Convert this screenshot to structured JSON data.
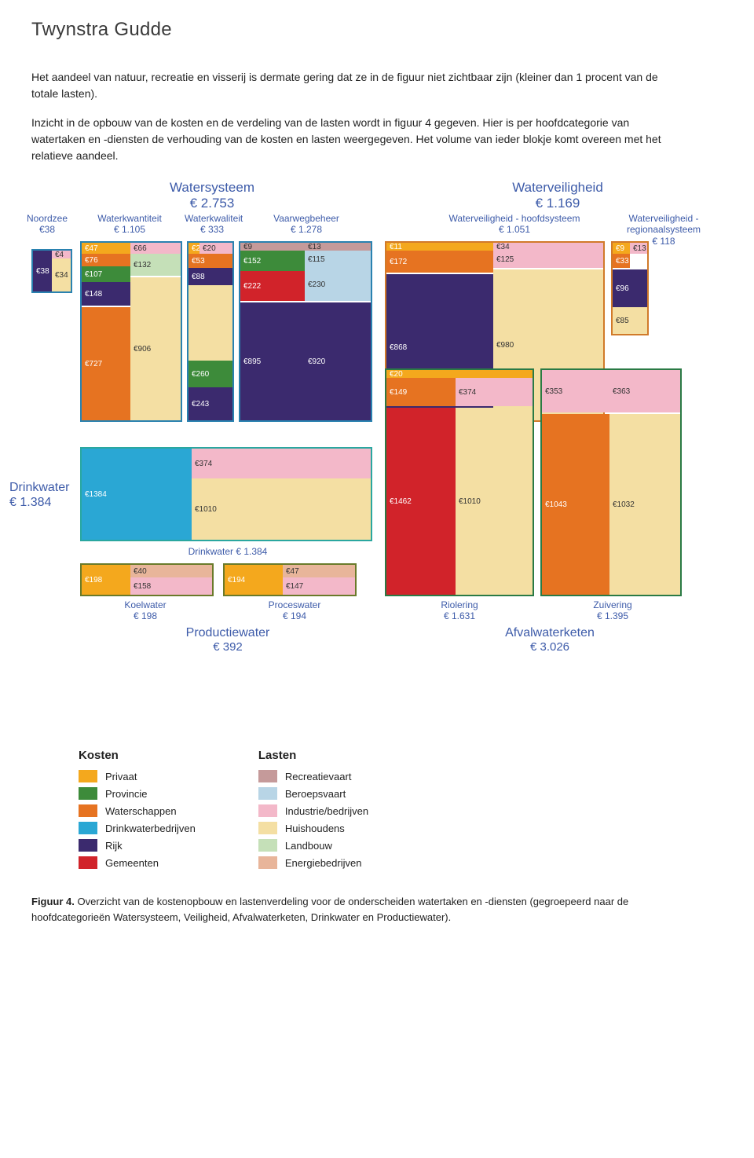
{
  "brand": "Twynstra Gudde",
  "para1": "Het aandeel van natuur, recreatie en visserij is dermate gering dat ze in de figuur niet zichtbaar zijn (kleiner dan 1 procent van de totale lasten).",
  "para2": "Inzicht in de opbouw van de kosten en de verdeling van de lasten wordt in figuur 4 gegeven. Hier is per hoofdcategorie van watertaken en -diensten de verhouding van de kosten en lasten weergegeven. Het volume van ieder blokje komt overeen met het relatieve aandeel.",
  "colors": {
    "privaat": "#f4a81d",
    "provincie": "#3d8b3a",
    "waterschappen": "#e67321",
    "drinkwaterbedrijven": "#2aa7d4",
    "rijk": "#3b2a6e",
    "gemeenten": "#d1232a",
    "recreatievaart": "#c59a9a",
    "beroepsvaart": "#b8d5e6",
    "industrie": "#f3b8c9",
    "huishoudens": "#f4dfa3",
    "landbouw": "#c5e0b8",
    "energiebedrijven": "#e8b59a",
    "border_ws": "#2a82b0",
    "border_wv": "#d17a2a",
    "border_dw": "#2aa7a0",
    "border_pw": "#6a7a2a",
    "border_awk": "#2a7a45",
    "title": "#3d5ba9"
  },
  "groups": {
    "watersysteem": {
      "name": "Watersysteem",
      "value": "€ 2.753"
    },
    "waterveiligheid": {
      "name": "Waterveiligheid",
      "value": "€ 1.169"
    },
    "drinkwater": {
      "name": "Drinkwater",
      "value": "€ 1.384"
    },
    "productiewater": {
      "name": "Productiewater",
      "value": "€ 392"
    },
    "afvalwaterketen": {
      "name": "Afvalwaterketen",
      "value": "€ 3.026"
    }
  },
  "subs": {
    "noordzee": {
      "name": "Noordzee",
      "value": "€38"
    },
    "wkwant": {
      "name": "Waterkwantiteit",
      "value": "€ 1.105"
    },
    "wkwal": {
      "name": "Waterkwaliteit",
      "value": "€ 333"
    },
    "vaarweg": {
      "name": "Vaarwegbeheer",
      "value": "€ 1.278"
    },
    "wv_hoofd": {
      "name": "Waterveiligheid - hoofdsysteem",
      "value": "€ 1.051"
    },
    "wv_regio": {
      "name": "Waterveiligheid - regionaalsysteem",
      "value": "€ 118"
    },
    "drinkwater": {
      "name": "Drinkwater € 1.384",
      "value": ""
    },
    "koelwater": {
      "name": "Koelwater",
      "value": "€ 198"
    },
    "proceswater": {
      "name": "Proceswater",
      "value": "€ 194"
    },
    "riolering": {
      "name": "Riolering",
      "value": "€ 1.631"
    },
    "zuivering": {
      "name": "Zuivering",
      "value": "€ 1.395"
    }
  },
  "cells": {
    "nz_rijk_k": "€38",
    "nz_hh_l": "€34",
    "nz_top": "€4",
    "wkwant_priv": "€47",
    "wkwant_ws1": "€76",
    "wkwant_prov": "€107",
    "wkwant_rijk": "€148",
    "wkwant_ws2": "€727",
    "wkwant_top": "€66",
    "wkwant_ind": "€132",
    "wkwant_hh": "€906",
    "wkwal_a": "€2",
    "wkwal_b": "€20",
    "wkwal_c": "€53",
    "wkwal_d": "€88",
    "wkwal_e": "€260",
    "wkwal_f": "€243",
    "vw_a": "€9",
    "vw_b": "€13",
    "vw_c": "€152",
    "vw_d": "€115",
    "vw_e": "€222",
    "vw_f": "€230",
    "vw_g": "€895",
    "vw_h": "€920",
    "wvh_a": "€11",
    "wvh_b": "€172",
    "wvh_c": "€868",
    "wvh_d": "€125",
    "wvh_e": "€980",
    "wvh_f": "€34",
    "wvr_a": "€9",
    "wvr_b": "€13",
    "wvr_c": "€33",
    "wvr_d": "€96",
    "wvr_e": "€85",
    "dw_a": "€1384",
    "dw_b": "€374",
    "dw_c": "€1010",
    "kw_a": "€198",
    "kw_b": "€40",
    "kw_c": "€158",
    "pw_a": "€194",
    "pw_b": "€47",
    "pw_c": "€147",
    "rio_a": "€20",
    "rio_b": "€149",
    "rio_c": "€374",
    "rio_d": "€1462",
    "rio_e": "€1010",
    "zuiv_a": "€353",
    "zuiv_b": "€363",
    "zuiv_c": "€1043",
    "zuiv_d": "€1032"
  },
  "legend": {
    "kosten": {
      "title": "Kosten",
      "items": [
        {
          "c": "privaat",
          "l": "Privaat"
        },
        {
          "c": "provincie",
          "l": "Provincie"
        },
        {
          "c": "waterschappen",
          "l": "Waterschappen"
        },
        {
          "c": "drinkwaterbedrijven",
          "l": "Drinkwaterbedrijven"
        },
        {
          "c": "rijk",
          "l": "Rijk"
        },
        {
          "c": "gemeenten",
          "l": "Gemeenten"
        }
      ]
    },
    "lasten": {
      "title": "Lasten",
      "items": [
        {
          "c": "recreatievaart",
          "l": "Recreatievaart"
        },
        {
          "c": "beroepsvaart",
          "l": "Beroepsvaart"
        },
        {
          "c": "industrie",
          "l": "Industrie/bedrijven"
        },
        {
          "c": "huishoudens",
          "l": "Huishoudens"
        },
        {
          "c": "landbouw",
          "l": "Landbouw"
        },
        {
          "c": "energiebedrijven",
          "l": "Energiebedrijven"
        }
      ]
    }
  },
  "caption_bold": "Figuur 4.",
  "caption": " Overzicht van de kostenopbouw en lastenverdeling voor de onderscheiden watertaken en -diensten (gegroepeerd naar de hoofdcategorieën Watersysteem, Veiligheid, Afvalwaterketen, Drinkwater en Productiewater)."
}
